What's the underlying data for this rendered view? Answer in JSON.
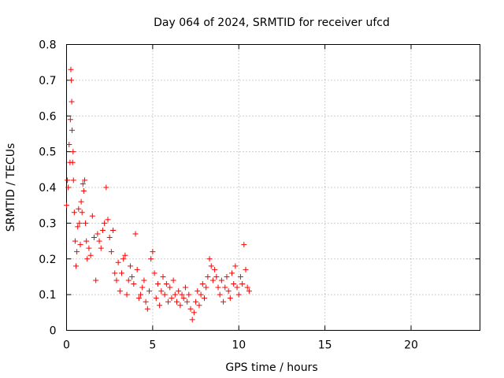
{
  "chart_data": {
    "type": "scatter",
    "title": "Day 064 of 2024, SRMTID for receiver ufcd",
    "xlabel": "GPS time / hours",
    "ylabel": "SRMTID / TECUs",
    "xlim": [
      0,
      24
    ],
    "ylim": [
      0,
      0.8
    ],
    "xticks": [
      0,
      5,
      10,
      15,
      20
    ],
    "xtick_labels": [
      "0",
      "5",
      "10",
      "15",
      "20"
    ],
    "yticks": [
      0,
      0.1,
      0.2,
      0.3,
      0.4,
      0.5,
      0.6,
      0.7,
      0.8
    ],
    "ytick_labels": [
      "0",
      "0.1",
      "0.2",
      "0.3",
      "0.4",
      "0.5",
      "0.6",
      "0.7",
      "0.8"
    ],
    "grid": true,
    "marker": "+",
    "color": "#ff0000",
    "series": [
      {
        "name": "SRMTID",
        "x": [
          0.0,
          0.05,
          0.1,
          0.15,
          0.2,
          0.22,
          0.25,
          0.28,
          0.3,
          0.32,
          0.35,
          0.38,
          0.4,
          0.45,
          0.5,
          0.55,
          0.6,
          0.65,
          0.7,
          0.75,
          0.8,
          0.85,
          0.9,
          0.95,
          1.0,
          1.05,
          1.1,
          1.15,
          1.2,
          1.3,
          1.4,
          1.5,
          1.6,
          1.7,
          1.8,
          1.9,
          2.0,
          2.1,
          2.2,
          2.3,
          2.4,
          2.5,
          2.6,
          2.7,
          2.8,
          2.9,
          3.0,
          3.1,
          3.2,
          3.3,
          3.4,
          3.5,
          3.6,
          3.7,
          3.8,
          3.9,
          4.0,
          4.1,
          4.2,
          4.3,
          4.4,
          4.5,
          4.6,
          4.7,
          4.8,
          4.9,
          5.0,
          5.1,
          5.2,
          5.3,
          5.4,
          5.5,
          5.6,
          5.7,
          5.8,
          5.9,
          6.0,
          6.1,
          6.2,
          6.3,
          6.4,
          6.5,
          6.6,
          6.7,
          6.8,
          6.9,
          7.0,
          7.1,
          7.2,
          7.3,
          7.4,
          7.5,
          7.6,
          7.7,
          7.8,
          7.9,
          8.0,
          8.1,
          8.2,
          8.3,
          8.4,
          8.5,
          8.6,
          8.7,
          8.8,
          8.9,
          9.0,
          9.1,
          9.2,
          9.3,
          9.4,
          9.5,
          9.6,
          9.7,
          9.8,
          9.9,
          10.0,
          10.1,
          10.2,
          10.3,
          10.4,
          10.5,
          10.6
        ],
        "y": [
          0.35,
          0.42,
          0.4,
          0.52,
          0.47,
          0.59,
          0.73,
          0.7,
          0.64,
          0.56,
          0.47,
          0.5,
          0.42,
          0.33,
          0.25,
          0.18,
          0.22,
          0.29,
          0.34,
          0.3,
          0.24,
          0.36,
          0.33,
          0.41,
          0.39,
          0.42,
          0.3,
          0.25,
          0.2,
          0.23,
          0.21,
          0.32,
          0.26,
          0.14,
          0.27,
          0.25,
          0.23,
          0.28,
          0.3,
          0.4,
          0.31,
          0.26,
          0.22,
          0.28,
          0.16,
          0.14,
          0.19,
          0.11,
          0.16,
          0.2,
          0.21,
          0.1,
          0.14,
          0.18,
          0.15,
          0.13,
          0.27,
          0.17,
          0.09,
          0.1,
          0.12,
          0.14,
          0.08,
          0.06,
          0.11,
          0.2,
          0.22,
          0.16,
          0.09,
          0.13,
          0.07,
          0.11,
          0.15,
          0.1,
          0.13,
          0.08,
          0.12,
          0.09,
          0.14,
          0.1,
          0.08,
          0.11,
          0.07,
          0.1,
          0.09,
          0.12,
          0.08,
          0.1,
          0.06,
          0.03,
          0.05,
          0.08,
          0.11,
          0.07,
          0.1,
          0.13,
          0.09,
          0.12,
          0.15,
          0.2,
          0.18,
          0.14,
          0.17,
          0.15,
          0.12,
          0.1,
          0.14,
          0.08,
          0.12,
          0.15,
          0.11,
          0.09,
          0.16,
          0.13,
          0.18,
          0.12,
          0.1,
          0.15,
          0.13,
          0.24,
          0.17,
          0.12,
          0.11
        ]
      }
    ]
  }
}
